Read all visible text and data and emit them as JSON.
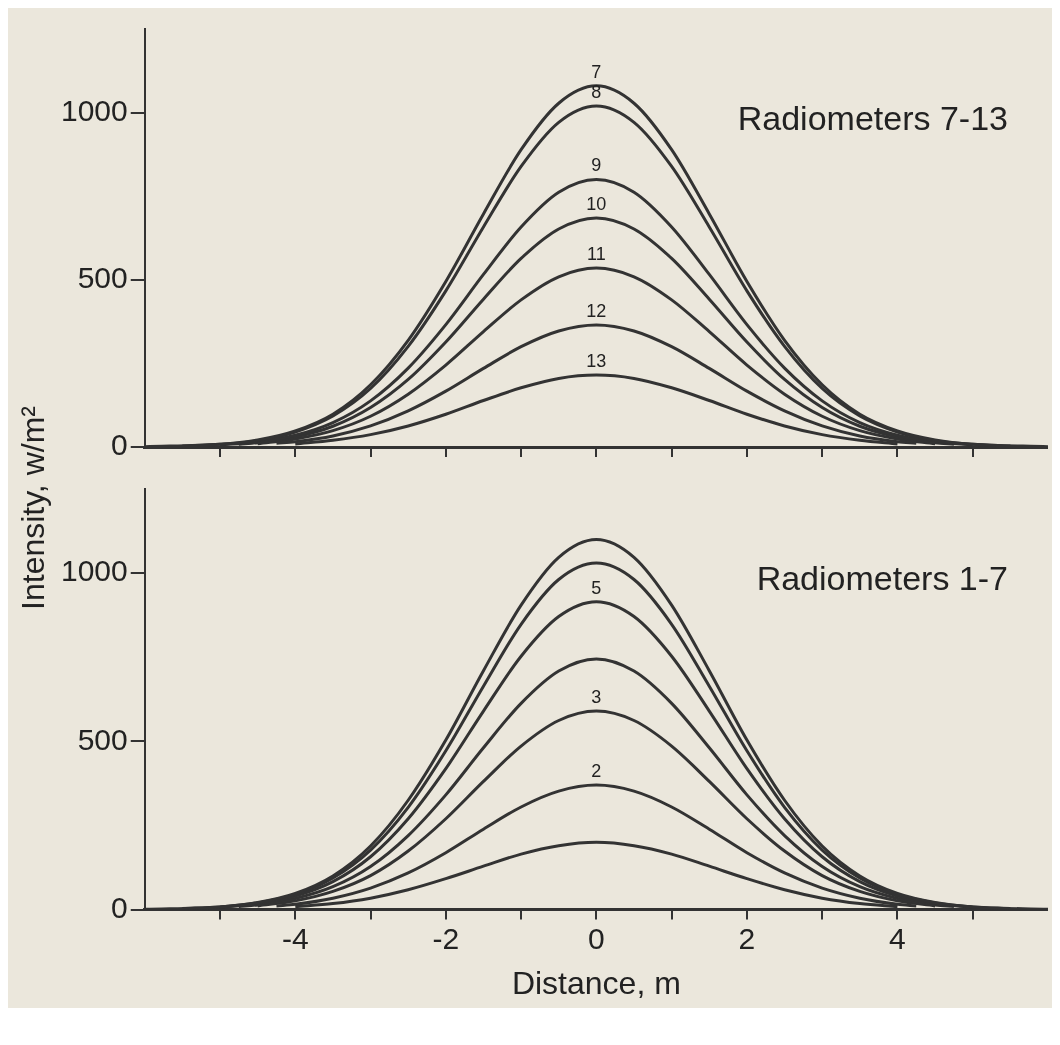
{
  "chart_data": [
    {
      "type": "line",
      "ylabel": "Intensity, w/m²",
      "annotations": [
        "Radiometers 7-13"
      ],
      "xlim": [
        -6,
        6
      ],
      "xticks": [
        {
          "value": -5,
          "label": null
        },
        -4,
        {
          "value": -3,
          "label": null
        },
        -2,
        {
          "value": -1,
          "label": null
        },
        0,
        {
          "value": 1,
          "label": null
        },
        2,
        {
          "value": 3,
          "label": null
        },
        4,
        {
          "value": 5,
          "label": null
        }
      ],
      "ylim": [
        0,
        1250
      ],
      "yticks": [
        0,
        500,
        1000
      ],
      "tick_labels": "y",
      "grid": false,
      "legend": false,
      "marker": "none",
      "line_style": "solid",
      "series": [
        {
          "name": "7",
          "color": "#333333",
          "x": [
            -6,
            -5,
            -4.5,
            -4,
            -3.5,
            -3,
            -2.5,
            -2,
            -1.5,
            -1,
            -0.5,
            0,
            0.5,
            1,
            1.5,
            2,
            2.5,
            3,
            3.5,
            4,
            4.5,
            5,
            6
          ],
          "values": [
            1,
            8,
            21,
            48,
            98,
            186,
            319,
            495,
            697,
            889,
            1028,
            1080,
            1028,
            889,
            697,
            495,
            319,
            186,
            98,
            48,
            21,
            8,
            1
          ]
        },
        {
          "name": "8",
          "color": "#333333",
          "x": [
            -5.5,
            -5,
            -4.5,
            -4,
            -3.5,
            -3,
            -2.5,
            -2,
            -1.5,
            -1,
            -0.5,
            0,
            0.5,
            1,
            1.5,
            2,
            2.5,
            3,
            3.5,
            4,
            4.5,
            5,
            5.5
          ],
          "values": [
            3,
            8,
            19,
            45,
            93,
            175,
            301,
            467,
            658,
            839,
            971,
            1020,
            971,
            839,
            658,
            467,
            301,
            175,
            93,
            45,
            19,
            8,
            3
          ]
        },
        {
          "name": "9",
          "color": "#333333",
          "x": [
            -5,
            -4.5,
            -4,
            -3.5,
            -3,
            -2.5,
            -2,
            -1.5,
            -1,
            -0.5,
            0,
            0.5,
            1,
            1.5,
            2,
            2.5,
            3,
            3.5,
            4,
            4.5,
            5
          ],
          "values": [
            6,
            15,
            35,
            73,
            138,
            236,
            366,
            516,
            658,
            762,
            800,
            762,
            658,
            516,
            366,
            236,
            138,
            73,
            35,
            15,
            6
          ]
        },
        {
          "name": "10",
          "color": "#333333",
          "x": [
            -4.75,
            -4.5,
            -4,
            -3.5,
            -3,
            -2.5,
            -2,
            -1.5,
            -1,
            -0.5,
            0,
            0.5,
            1,
            1.5,
            2,
            2.5,
            3,
            3.5,
            4,
            4.5,
            4.75
          ],
          "values": [
            8,
            13,
            30,
            62,
            118,
            202,
            314,
            442,
            564,
            652,
            685,
            652,
            564,
            442,
            314,
            202,
            118,
            62,
            30,
            13,
            8
          ]
        },
        {
          "name": "11",
          "color": "#333333",
          "x": [
            -4.5,
            -4,
            -3.5,
            -3,
            -2.5,
            -2,
            -1.5,
            -1,
            -0.5,
            0,
            0.5,
            1,
            1.5,
            2,
            2.5,
            3,
            3.5,
            4,
            4.5
          ],
          "values": [
            10,
            24,
            49,
            92,
            158,
            245,
            345,
            440,
            509,
            535,
            509,
            440,
            345,
            245,
            158,
            92,
            49,
            24,
            10
          ]
        },
        {
          "name": "12",
          "color": "#333333",
          "x": [
            -4.25,
            -4,
            -3.5,
            -3,
            -2.5,
            -2,
            -1.5,
            -1,
            -0.5,
            0,
            0.5,
            1,
            1.5,
            2,
            2.5,
            3,
            3.5,
            4,
            4.25
          ],
          "values": [
            11,
            16,
            33,
            63,
            108,
            167,
            235,
            300,
            347,
            365,
            347,
            300,
            235,
            167,
            108,
            63,
            33,
            16,
            11
          ]
        },
        {
          "name": "13",
          "color": "#333333",
          "x": [
            -4,
            -3.5,
            -3,
            -2.5,
            -2,
            -1.5,
            -1,
            -0.5,
            0,
            0.5,
            1,
            1.5,
            2,
            2.5,
            3,
            3.5,
            4
          ],
          "values": [
            9,
            20,
            37,
            63,
            98,
            139,
            177,
            205,
            215,
            205,
            177,
            139,
            98,
            63,
            37,
            20,
            9
          ]
        }
      ]
    },
    {
      "type": "line",
      "xlabel": "Distance, m",
      "annotations": [
        "Radiometers 1-7"
      ],
      "xlim": [
        -6,
        6
      ],
      "xticks": [
        {
          "value": -5,
          "label": null
        },
        -4,
        {
          "value": -3,
          "label": null
        },
        -2,
        {
          "value": -1,
          "label": null
        },
        0,
        {
          "value": 1,
          "label": null
        },
        2,
        {
          "value": 3,
          "label": null
        },
        4,
        {
          "value": 5,
          "label": null
        }
      ],
      "ylim": [
        0,
        1250
      ],
      "yticks": [
        0,
        500,
        1000
      ],
      "grid": false,
      "legend": false,
      "marker": "none",
      "line_style": "solid",
      "series": [
        {
          "color": "#333333",
          "x": [
            -6,
            -5,
            -4.5,
            -4,
            -3.5,
            -3,
            -2.5,
            -2,
            -1.5,
            -1,
            -0.5,
            0,
            0.5,
            1,
            1.5,
            2,
            2.5,
            3,
            3.5,
            4,
            4.5,
            5,
            6
          ],
          "values": [
            1,
            8,
            21,
            48,
            100,
            189,
            325,
            504,
            710,
            905,
            1047,
            1100,
            1047,
            905,
            710,
            504,
            325,
            189,
            100,
            48,
            21,
            8,
            1
          ]
        },
        {
          "color": "#333333",
          "x": [
            -5.5,
            -5,
            -4.5,
            -4,
            -3.5,
            -3,
            -2.5,
            -2,
            -1.5,
            -1,
            -0.5,
            0,
            0.5,
            1,
            1.5,
            2,
            2.5,
            3,
            3.5,
            4,
            4.5,
            5,
            5.5
          ],
          "values": [
            3,
            8,
            20,
            45,
            94,
            177,
            304,
            472,
            664,
            848,
            981,
            1030,
            981,
            848,
            664,
            472,
            304,
            177,
            94,
            45,
            20,
            8,
            3
          ]
        },
        {
          "name": "5",
          "color": "#333333",
          "x": [
            -5,
            -4.5,
            -4,
            -3.5,
            -3,
            -2.5,
            -2,
            -1.5,
            -1,
            -0.5,
            0,
            0.5,
            1,
            1.5,
            2,
            2.5,
            3,
            3.5,
            4,
            4.5,
            5
          ],
          "values": [
            7,
            17,
            40,
            83,
            157,
            270,
            419,
            590,
            753,
            871,
            915,
            871,
            753,
            590,
            419,
            270,
            157,
            83,
            40,
            17,
            7
          ]
        },
        {
          "color": "#333333",
          "x": [
            -4.75,
            -4.5,
            -4,
            -3.5,
            -3,
            -2.5,
            -2,
            -1.5,
            -1,
            -0.5,
            0,
            0.5,
            1,
            1.5,
            2,
            2.5,
            3,
            3.5,
            4,
            4.5,
            4.75
          ],
          "values": [
            9,
            14,
            33,
            68,
            128,
            220,
            341,
            481,
            613,
            709,
            745,
            709,
            613,
            481,
            341,
            220,
            128,
            68,
            33,
            14,
            9
          ]
        },
        {
          "name": "3",
          "color": "#333333",
          "x": [
            -4.5,
            -4,
            -3.5,
            -3,
            -2.5,
            -2,
            -1.5,
            -1,
            -0.5,
            0,
            0.5,
            1,
            1.5,
            2,
            2.5,
            3,
            3.5,
            4,
            4.5
          ],
          "values": [
            11,
            26,
            54,
            101,
            174,
            270,
            381,
            486,
            562,
            590,
            562,
            486,
            381,
            270,
            174,
            101,
            54,
            26,
            11
          ]
        },
        {
          "name": "2",
          "color": "#333333",
          "x": [
            -4.25,
            -4,
            -3.5,
            -3,
            -2.5,
            -2,
            -1.5,
            -1,
            -0.5,
            0,
            0.5,
            1,
            1.5,
            2,
            2.5,
            3,
            3.5,
            4,
            4.25
          ],
          "values": [
            11,
            16,
            34,
            64,
            109,
            169,
            239,
            305,
            352,
            370,
            352,
            305,
            239,
            169,
            109,
            64,
            34,
            16,
            11
          ]
        },
        {
          "color": "#333333",
          "x": [
            -4,
            -3.5,
            -3,
            -2.5,
            -2,
            -1.5,
            -1,
            -0.5,
            0,
            0.5,
            1,
            1.5,
            2,
            2.5,
            3,
            3.5,
            4
          ],
          "values": [
            9,
            18,
            34,
            59,
            92,
            129,
            165,
            190,
            200,
            190,
            165,
            129,
            92,
            59,
            34,
            18,
            9
          ]
        }
      ]
    }
  ]
}
